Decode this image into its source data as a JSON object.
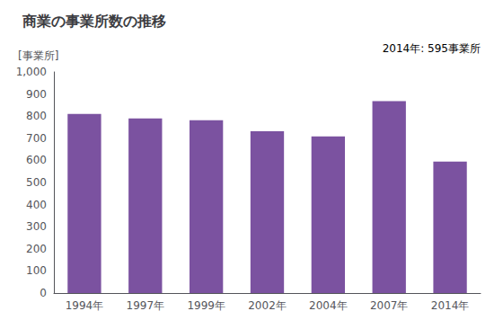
{
  "chart_data": {
    "type": "bar",
    "title": "商業の事業所数の推移",
    "ylabel": "[事業所]",
    "annotation": "2014年: 595事業所",
    "categories": [
      "1994年",
      "1997年",
      "1999年",
      "2002年",
      "2004年",
      "2007年",
      "2014年"
    ],
    "values": [
      810,
      790,
      782,
      732,
      708,
      868,
      595
    ],
    "color": "#7B52A0",
    "ylim": [
      0,
      1000
    ],
    "yticks": [
      0,
      100,
      200,
      300,
      400,
      500,
      600,
      700,
      800,
      900,
      {
        "value": 1000,
        "label": "1,000"
      }
    ],
    "grid": false
  }
}
